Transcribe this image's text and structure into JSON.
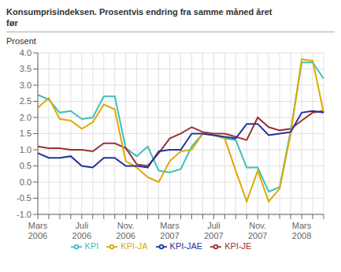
{
  "chart_data": {
    "type": "line",
    "title": "Konsumprisindeksen. Prosentvis endring fra samme måned året\nfør",
    "ylabel": "Prosent",
    "categories": [
      "Mars\n2006",
      null,
      null,
      null,
      "Juli\n2006",
      null,
      null,
      null,
      "Nov.\n2006",
      null,
      null,
      null,
      "Mars\n2007",
      null,
      null,
      null,
      "Juli\n2007",
      null,
      null,
      null,
      "Nov.\n2007",
      null,
      null,
      null,
      "Mars\n2008",
      null,
      null
    ],
    "series": [
      {
        "name": "KPI",
        "color": "#3DBFBF",
        "values": [
          2.7,
          2.55,
          2.15,
          2.2,
          1.95,
          2.0,
          2.65,
          2.65,
          1.05,
          0.8,
          1.1,
          0.35,
          0.3,
          0.4,
          1.1,
          1.5,
          1.45,
          1.35,
          1.3,
          0.45,
          0.45,
          -0.3,
          -0.15,
          1.6,
          3.7,
          3.7,
          3.2
        ]
      },
      {
        "name": "KPI-JE",
        "color": "#993333",
        "values": [
          1.1,
          1.05,
          1.05,
          1.0,
          1.0,
          0.95,
          1.2,
          1.2,
          1.05,
          0.55,
          0.5,
          0.9,
          1.35,
          1.5,
          1.7,
          1.55,
          1.5,
          1.5,
          1.4,
          1.3,
          2.0,
          1.7,
          1.6,
          1.65,
          1.9,
          2.15,
          2.2
        ]
      },
      {
        "name": "KPI-JA",
        "color": "#DDAA00",
        "values": [
          2.3,
          2.6,
          1.95,
          1.9,
          1.65,
          1.85,
          2.4,
          2.25,
          0.65,
          0.45,
          0.15,
          0.0,
          0.65,
          0.95,
          1.0,
          1.5,
          1.45,
          1.35,
          0.35,
          -0.6,
          0.35,
          -0.6,
          -0.2,
          1.5,
          3.8,
          3.75,
          2.15
        ]
      },
      {
        "name": "KPI-JAE",
        "color": "#223399",
        "values": [
          0.9,
          0.75,
          0.75,
          0.8,
          0.5,
          0.45,
          0.75,
          0.75,
          0.5,
          0.5,
          0.45,
          0.95,
          1.0,
          1.0,
          1.5,
          1.5,
          1.45,
          1.4,
          1.35,
          1.8,
          1.8,
          1.45,
          1.5,
          1.55,
          2.15,
          2.2,
          2.15
        ]
      }
    ],
    "ylim": [
      -1.0,
      4.0
    ],
    "yticks": [
      {
        "value": -1.0,
        "label": "-1.0"
      },
      -0.5,
      {
        "value": 0.0,
        "label": "0.0"
      },
      0.5,
      {
        "value": 1.0,
        "label": "1.0"
      },
      1.5,
      {
        "value": 2.0,
        "label": "2.0"
      },
      2.5,
      {
        "value": 3.0,
        "label": "3.0"
      },
      3.5,
      {
        "value": 4.0,
        "label": "4.0"
      }
    ],
    "grid": true,
    "legend": "bottom"
  }
}
